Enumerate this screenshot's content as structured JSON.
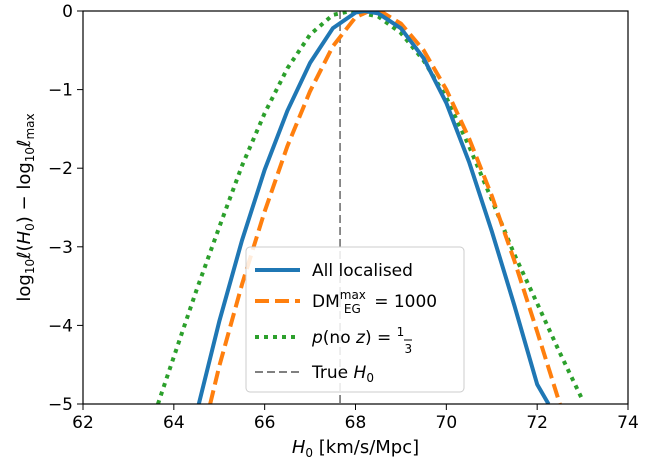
{
  "chart_data": {
    "type": "line",
    "xlabel": "H0 [km/s/Mpc]",
    "ylabel": "log10 ℓ(H0) − log10 ℓmax",
    "xlim": [
      62,
      74
    ],
    "ylim": [
      -5,
      0
    ],
    "xticks": [
      62,
      64,
      66,
      68,
      70,
      72,
      74
    ],
    "yticks": [
      0,
      -1,
      -2,
      -3,
      -4,
      -5
    ],
    "xtick_labels": [
      "62",
      "64",
      "66",
      "68",
      "70",
      "72",
      "74"
    ],
    "ytick_labels": [
      "0",
      "−1",
      "−2",
      "−3",
      "−4",
      "−5"
    ],
    "true_h0": 67.66,
    "grid": false,
    "legend_position": "lower-center",
    "series": [
      {
        "name": "All localised",
        "color": "#1f77b4",
        "style": "solid",
        "x": [
          64.55,
          65.0,
          65.5,
          66.0,
          66.5,
          67.0,
          67.5,
          68.0,
          68.2,
          68.5,
          69.0,
          69.5,
          70.0,
          70.5,
          71.0,
          71.5,
          72.0,
          72.25
        ],
        "y": [
          -5.0,
          -3.95,
          -2.92,
          -2.02,
          -1.27,
          -0.66,
          -0.22,
          -0.02,
          0.0,
          -0.03,
          -0.22,
          -0.6,
          -1.17,
          -1.92,
          -2.8,
          -3.75,
          -4.75,
          -5.0
        ]
      },
      {
        "name": "DM_EG^max = 1000",
        "color": "#ff7f0e",
        "style": "dashed",
        "x": [
          64.8,
          65.0,
          65.5,
          66.0,
          66.5,
          67.0,
          67.5,
          68.0,
          68.3,
          68.6,
          69.0,
          69.5,
          70.0,
          70.5,
          71.0,
          71.5,
          72.0,
          72.5
        ],
        "y": [
          -5.0,
          -4.52,
          -3.48,
          -2.55,
          -1.72,
          -1.02,
          -0.45,
          -0.08,
          0.0,
          -0.02,
          -0.16,
          -0.5,
          -1.0,
          -1.62,
          -2.35,
          -3.18,
          -4.08,
          -5.0
        ]
      },
      {
        "name": "p(no z) = 1/3",
        "color": "#2ca02c",
        "style": "dotted",
        "x": [
          63.65,
          64.0,
          64.5,
          65.0,
          65.5,
          66.0,
          66.5,
          67.0,
          67.5,
          67.9,
          68.5,
          69.0,
          69.5,
          70.0,
          70.5,
          71.0,
          71.5,
          72.0,
          72.5,
          73.0
        ],
        "y": [
          -5.0,
          -4.4,
          -3.55,
          -2.75,
          -1.97,
          -1.3,
          -0.73,
          -0.3,
          -0.05,
          0.0,
          -0.07,
          -0.28,
          -0.63,
          -1.1,
          -1.72,
          -2.4,
          -3.1,
          -3.72,
          -4.35,
          -4.95
        ]
      }
    ],
    "vline": {
      "name": "True H0",
      "color": "#808080",
      "style": "dashed"
    }
  }
}
